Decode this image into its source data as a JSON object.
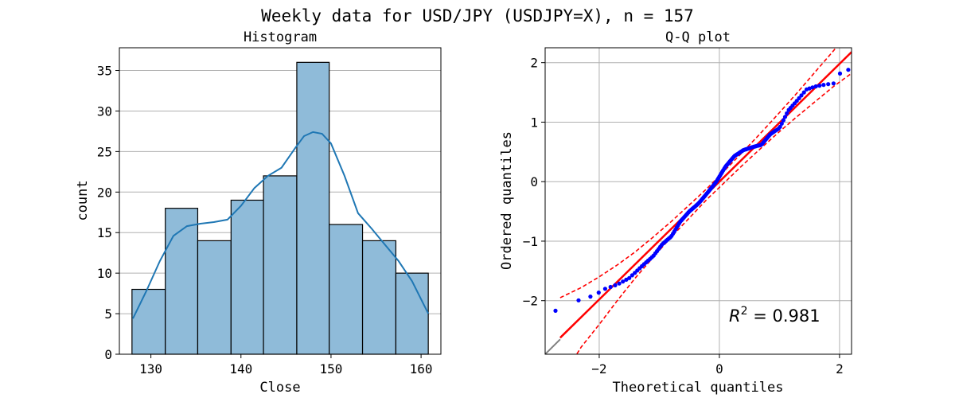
{
  "figure": {
    "title": "Weekly data for USD/JPY (USDJPY=X), n = 157"
  },
  "colors": {
    "bar_fill": "#8fbbd9",
    "bar_edge": "#000000",
    "kde": "#1f77b4",
    "grid": "#b0b0b0",
    "qq_points": "#0000ff",
    "fit_line": "#ff0000",
    "ref_line": "#808080"
  },
  "chart_data": [
    {
      "type": "bar",
      "subtype": "histogram",
      "title": "Histogram",
      "xlabel": "Close",
      "ylabel": "count",
      "bin_edges": [
        127.9,
        131.6,
        135.2,
        138.9,
        142.5,
        146.2,
        149.8,
        153.5,
        157.2,
        160.8
      ],
      "counts": [
        8,
        18,
        14,
        19,
        22,
        36,
        16,
        14,
        10
      ],
      "xlim": [
        126.5,
        162.2
      ],
      "ylim": [
        0,
        37.8
      ],
      "xticks": [
        130,
        140,
        150,
        160
      ],
      "yticks": [
        0,
        5,
        10,
        15,
        20,
        25,
        30,
        35
      ],
      "grid": "y",
      "kde": {
        "x": [
          128.0,
          129.5,
          131.0,
          132.5,
          134.0,
          135.5,
          137.0,
          138.5,
          140.0,
          141.5,
          143.0,
          144.5,
          146.0,
          147.0,
          148.0,
          149.0,
          150.0,
          151.5,
          153.0,
          154.5,
          156.0,
          157.5,
          159.0,
          160.8
        ],
        "y": [
          4.4,
          7.8,
          11.5,
          14.6,
          15.8,
          16.1,
          16.3,
          16.6,
          18.3,
          20.5,
          22.0,
          23.0,
          25.4,
          26.9,
          27.4,
          27.2,
          26.0,
          22.0,
          17.4,
          15.5,
          13.5,
          11.5,
          9.0,
          5.0
        ]
      }
    },
    {
      "type": "scatter",
      "subtype": "qq-plot",
      "title": "Q-Q plot",
      "xlabel": "Theoretical quantiles",
      "ylabel": "Ordered quantiles",
      "annotation_label": "R",
      "annotation_power": "2",
      "annotation_value": " = 0.981",
      "xlim": [
        -2.9,
        2.2
      ],
      "ylim": [
        -2.9,
        2.25
      ],
      "xticks": [
        -2,
        0,
        2
      ],
      "yticks": [
        -2,
        -1,
        0,
        1,
        2
      ],
      "grid": "both",
      "n_points": 157,
      "fit_line": {
        "slope": 0.99,
        "intercept": 0.0,
        "x_range": [
          -2.65,
          2.2
        ]
      },
      "reference_line": {
        "slope": 1.0,
        "intercept": 0.0,
        "x_range": [
          -2.9,
          -2.65
        ]
      },
      "confidence_band": {
        "x": [
          -2.65,
          -2.3,
          -2.0,
          -1.7,
          -1.4,
          -1.1,
          -0.8,
          -0.5,
          -0.2,
          0.1,
          0.4,
          0.7,
          1.0,
          1.3,
          1.6,
          1.9,
          2.2
        ],
        "upper": [
          -1.95,
          -1.78,
          -1.6,
          -1.4,
          -1.18,
          -0.93,
          -0.67,
          -0.39,
          -0.11,
          0.2,
          0.51,
          0.83,
          1.16,
          1.5,
          1.85,
          2.2,
          2.58
        ],
        "lower": [
          -3.35,
          -2.78,
          -2.4,
          -2.0,
          -1.62,
          -1.27,
          -0.93,
          -0.61,
          -0.29,
          0.0,
          0.29,
          0.57,
          0.84,
          1.1,
          1.35,
          1.6,
          1.82
        ]
      },
      "ordered_quantiles_by_theoretical": {
        "x": [
          -2.65,
          -2.3,
          -2.1,
          -1.9,
          -1.7,
          -1.5,
          -1.3,
          -1.1,
          -0.95,
          -0.8,
          -0.65,
          -0.5,
          -0.35,
          -0.2,
          -0.05,
          0.1,
          0.25,
          0.4,
          0.55,
          0.7,
          0.85,
          1.0,
          1.15,
          1.3,
          1.45,
          1.6,
          1.75,
          1.9,
          2.05
        ],
        "y": [
          -2.17,
          -1.97,
          -1.92,
          -1.8,
          -1.73,
          -1.62,
          -1.43,
          -1.25,
          -1.05,
          -0.92,
          -0.67,
          -0.5,
          -0.37,
          -0.19,
          0.0,
          0.25,
          0.43,
          0.53,
          0.58,
          0.62,
          0.8,
          0.9,
          1.2,
          1.37,
          1.55,
          1.6,
          1.63,
          1.65,
          1.88
        ]
      }
    }
  ]
}
